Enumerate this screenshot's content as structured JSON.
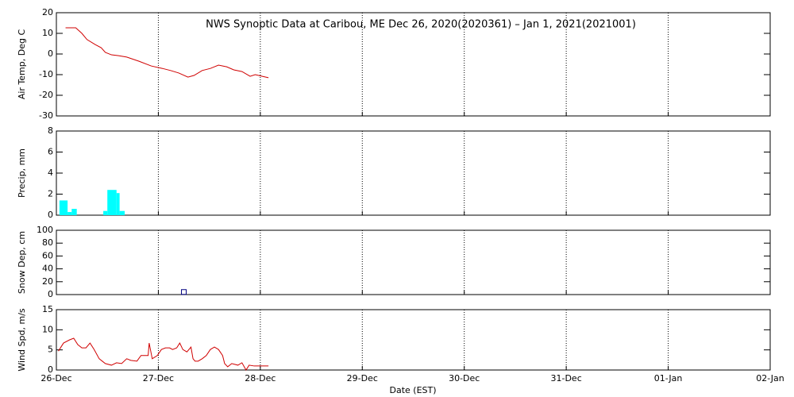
{
  "chart_data": [
    {
      "type": "line",
      "title": "NWS Synoptic Data at Caribou, ME   Dec 26, 2020(2020361) – Jan  1, 2021(2021001)",
      "ylabel": "Air Temp, Deg C",
      "color": "#d00000",
      "x": [
        0.09,
        0.19,
        0.25,
        0.3,
        0.38,
        0.44,
        0.48,
        0.54,
        0.61,
        0.69,
        0.81,
        0.93,
        1.04,
        1.12,
        1.2,
        1.29,
        1.35,
        1.43,
        1.51,
        1.59,
        1.67,
        1.74,
        1.82,
        1.9,
        1.95,
        2.02,
        2.08
      ],
      "values": [
        12.7,
        12.7,
        10,
        7,
        4.6,
        3,
        0.8,
        -0.4,
        -0.8,
        -1.5,
        -3.5,
        -5.8,
        -7,
        -8,
        -9.2,
        -11.2,
        -10.4,
        -8,
        -7,
        -5.4,
        -6.2,
        -7.7,
        -8.5,
        -10.8,
        -10,
        -10.8,
        -11.5
      ],
      "xlim": [
        0,
        7
      ],
      "ylim": [
        -30,
        20
      ],
      "yticks": [
        -30,
        -20,
        -10,
        0,
        10,
        20
      ]
    },
    {
      "type": "histogram",
      "ylabel": "Precip, mm",
      "color": "#00ffff",
      "bins": [
        0.03,
        0.11,
        0.15,
        0.2,
        0.46,
        0.5,
        0.59,
        0.62,
        0.67
      ],
      "values": [
        1.4,
        0.3,
        0.6,
        0,
        0.4,
        2.4,
        2.1,
        0.4
      ],
      "xlim": [
        0,
        7
      ],
      "ylim": [
        0,
        8
      ],
      "yticks": [
        0,
        2,
        4,
        6,
        8
      ]
    },
    {
      "type": "scatter",
      "ylabel": "Snow Dep, cm",
      "color": "#000080",
      "x": [
        1.25
      ],
      "values": [
        4
      ],
      "xlim": [
        0,
        7
      ],
      "ylim": [
        0,
        100
      ],
      "yticks": [
        0,
        20,
        40,
        60,
        80,
        100
      ]
    },
    {
      "type": "line",
      "ylabel": "Wind Spd, m/s",
      "xlabel": "Date (EST)",
      "color": "#d00000",
      "x": [
        0.02,
        0.07,
        0.13,
        0.17,
        0.21,
        0.25,
        0.29,
        0.33,
        0.37,
        0.42,
        0.48,
        0.54,
        0.59,
        0.64,
        0.69,
        0.73,
        0.79,
        0.83,
        0.86,
        0.9,
        0.91,
        0.94,
        0.99,
        1.03,
        1.07,
        1.11,
        1.14,
        1.18,
        1.21,
        1.24,
        1.28,
        1.32,
        1.34,
        1.36,
        1.39,
        1.43,
        1.47,
        1.51,
        1.55,
        1.59,
        1.63,
        1.65,
        1.68,
        1.72,
        1.78,
        1.82,
        1.86,
        1.89,
        1.94,
        2.02,
        2.08
      ],
      "values": [
        4.7,
        6.7,
        7.5,
        7.9,
        6.3,
        5.5,
        5.5,
        6.7,
        5.1,
        2.8,
        1.6,
        1.2,
        1.8,
        1.6,
        2.8,
        2.4,
        2.2,
        3.6,
        3.6,
        3.6,
        6.7,
        2.8,
        3.6,
        5.1,
        5.5,
        5.5,
        5.1,
        5.5,
        6.7,
        5.1,
        4.5,
        5.7,
        2.8,
        2.2,
        2.2,
        2.8,
        3.6,
        5.1,
        5.7,
        5.1,
        3.6,
        1.6,
        0.8,
        1.6,
        1.2,
        1.8,
        0,
        1.2,
        1,
        1,
        1
      ],
      "xlim": [
        0,
        7
      ],
      "ylim": [
        0,
        15
      ],
      "yticks": [
        0,
        5,
        10,
        15
      ],
      "xticks": [
        {
          "value": 0,
          "label": "26-Dec"
        },
        {
          "value": 1,
          "label": "27-Dec"
        },
        {
          "value": 2,
          "label": "28-Dec"
        },
        {
          "value": 3,
          "label": "29-Dec"
        },
        {
          "value": 4,
          "label": "30-Dec"
        },
        {
          "value": 5,
          "label": "31-Dec"
        },
        {
          "value": 6,
          "label": "01-Jan"
        },
        {
          "value": 7,
          "label": "02-Jan"
        }
      ]
    }
  ]
}
